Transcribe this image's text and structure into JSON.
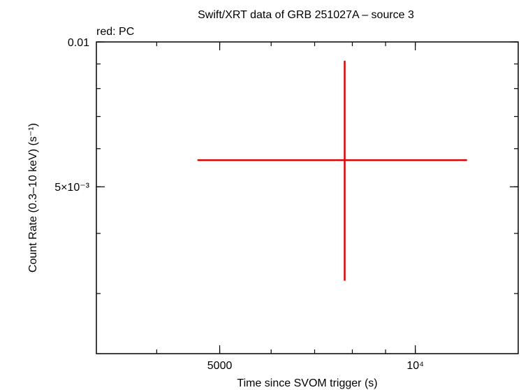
{
  "chart_data": {
    "type": "errorbar",
    "title": "Swift/XRT data of GRB 251027A – source 3",
    "annotation": "red: PC",
    "xlabel": "Time since SVOM trigger (s)",
    "ylabel": "Count Rate (0.3–10 keV) (s⁻¹)",
    "log_x": true,
    "log_y": true,
    "xlim": [
      3230,
      14400
    ],
    "ylim": [
      0.00225,
      0.01
    ],
    "xticks": [
      5000,
      {
        "value": 10000,
        "label": "10⁴"
      }
    ],
    "yticks": [
      {
        "value": 0.005,
        "label": "5×10⁻³"
      },
      0.01
    ],
    "series": [
      {
        "name": "PC",
        "color": "#e00000",
        "x": [
          7786
        ],
        "x_lower": [
          4621
        ],
        "x_upper": [
          12010
        ],
        "values": [
          0.00568
        ],
        "y_lower": [
          0.00319
        ],
        "y_upper": [
          0.00914
        ]
      }
    ]
  }
}
